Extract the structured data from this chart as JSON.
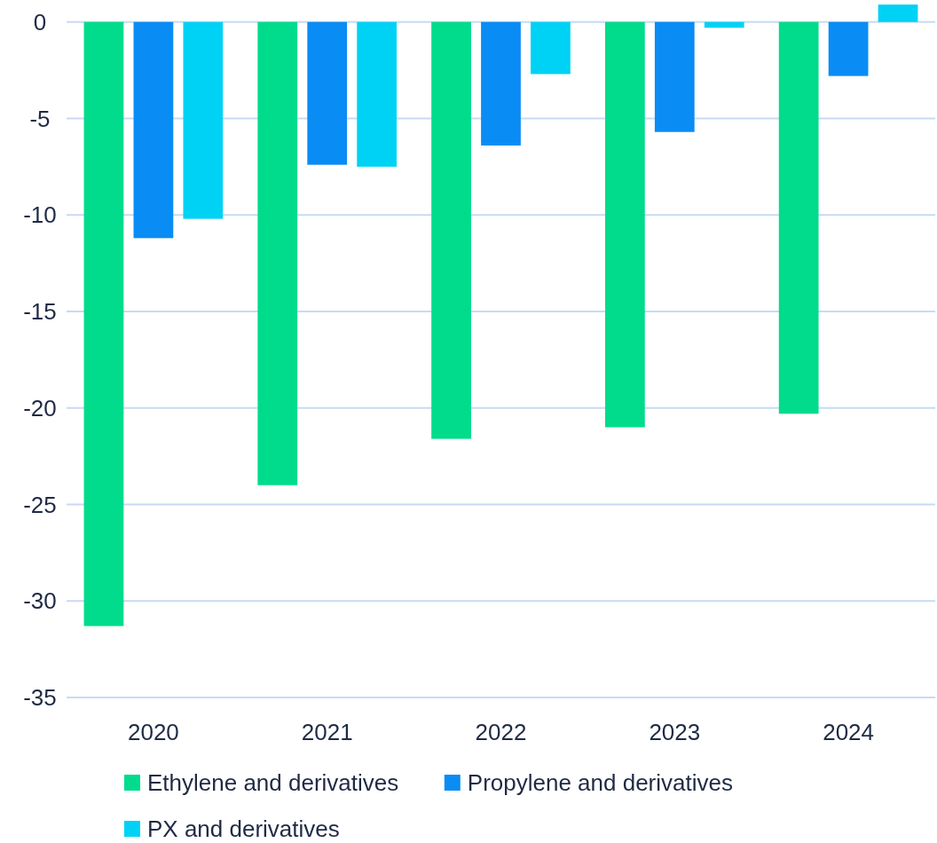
{
  "chart_data": {
    "type": "bar",
    "categories": [
      "2020",
      "2021",
      "2022",
      "2023",
      "2024"
    ],
    "series": [
      {
        "name": "Ethylene and derivatives",
        "color": "#00dc8c",
        "values": [
          -31.3,
          -24.0,
          -21.6,
          -21.0,
          -20.3
        ]
      },
      {
        "name": "Propylene and derivatives",
        "color": "#0a8cf5",
        "values": [
          -11.2,
          -7.4,
          -6.4,
          -5.7,
          -2.8
        ]
      },
      {
        "name": "PX and derivatives",
        "color": "#00d2f5",
        "values": [
          -10.2,
          -7.5,
          -2.7,
          -0.3,
          0.9
        ]
      }
    ],
    "ylim": [
      -35,
      1
    ],
    "yticks": [
      -35,
      -30,
      -25,
      -20,
      -15,
      -10,
      -5,
      0
    ],
    "grid": "y",
    "legend": "bottom"
  }
}
